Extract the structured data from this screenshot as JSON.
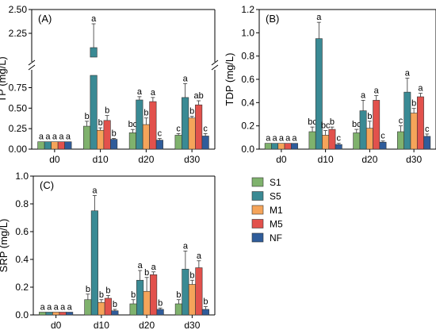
{
  "colors": {
    "S1": "#7fb26d",
    "S5": "#3a8a94",
    "M1": "#f5a45a",
    "M5": "#e2514c",
    "NF": "#2f5c9a"
  },
  "legend": [
    "S1",
    "S5",
    "M1",
    "M5",
    "NF"
  ],
  "chart_data": [
    {
      "id": "A",
      "type": "bar",
      "panel_label": "(A)",
      "ylabel": "TP (mg/L)",
      "categories": [
        "d0",
        "d10",
        "d20",
        "d30"
      ],
      "y_break": [
        0.9,
        2.0
      ],
      "ylim": [
        0,
        2.5
      ],
      "yticks_lower": [
        "0.00",
        "0.25",
        "0.50",
        "0.75"
      ],
      "yticks_upper": [
        "2.25",
        "2.50"
      ],
      "series": [
        {
          "name": "S1",
          "values": [
            0.09,
            0.28,
            0.2,
            0.17
          ],
          "errors": [
            0.0,
            0.06,
            0.04,
            0.02
          ],
          "letters": [
            "a",
            "b",
            "bc",
            "c"
          ]
        },
        {
          "name": "S5",
          "values": [
            0.09,
            2.1,
            0.6,
            0.63
          ],
          "errors": [
            0.0,
            0.25,
            0.04,
            0.17
          ],
          "letters": [
            "a",
            "a",
            "a",
            "a"
          ]
        },
        {
          "name": "M1",
          "values": [
            0.09,
            0.23,
            0.3,
            0.38
          ],
          "errors": [
            0.0,
            0.03,
            0.08,
            0.02
          ],
          "letters": [
            "a",
            "b",
            "b",
            "b"
          ]
        },
        {
          "name": "M5",
          "values": [
            0.09,
            0.35,
            0.58,
            0.54
          ],
          "errors": [
            0.0,
            0.06,
            0.05,
            0.05
          ],
          "letters": [
            "a",
            "b",
            "a",
            "ab"
          ]
        },
        {
          "name": "NF",
          "values": [
            0.09,
            0.12,
            0.11,
            0.16
          ],
          "errors": [
            0.0,
            0.01,
            0.02,
            0.03
          ],
          "letters": [
            "a",
            "b",
            "c",
            "c"
          ]
        }
      ]
    },
    {
      "id": "B",
      "type": "bar",
      "panel_label": "(B)",
      "ylabel": "TDP (mg/L)",
      "categories": [
        "d0",
        "d10",
        "d20",
        "d30"
      ],
      "ylim": [
        0,
        1.2
      ],
      "yticks": [
        "0.0",
        "0.2",
        "0.4",
        "0.6",
        "0.8",
        "1.0",
        "1.2"
      ],
      "series": [
        {
          "name": "S1",
          "values": [
            0.05,
            0.15,
            0.14,
            0.15
          ],
          "errors": [
            0.0,
            0.04,
            0.03,
            0.05
          ],
          "letters": [
            "a",
            "bc",
            "bc",
            "c"
          ]
        },
        {
          "name": "S5",
          "values": [
            0.05,
            0.95,
            0.33,
            0.49
          ],
          "errors": [
            0.0,
            0.14,
            0.09,
            0.12
          ],
          "letters": [
            "a",
            "a",
            "a",
            "a"
          ]
        },
        {
          "name": "M1",
          "values": [
            0.05,
            0.12,
            0.18,
            0.31
          ],
          "errors": [
            0.0,
            0.04,
            0.06,
            0.04
          ],
          "letters": [
            "a",
            "bc",
            "b",
            "b"
          ]
        },
        {
          "name": "M5",
          "values": [
            0.05,
            0.17,
            0.42,
            0.45
          ],
          "errors": [
            0.0,
            0.02,
            0.04,
            0.03
          ],
          "letters": [
            "a",
            "b",
            "a",
            "a"
          ]
        },
        {
          "name": "NF",
          "values": [
            0.05,
            0.04,
            0.06,
            0.11
          ],
          "errors": [
            0.0,
            0.01,
            0.01,
            0.02
          ],
          "letters": [
            "a",
            "c",
            "c",
            "c"
          ]
        }
      ]
    },
    {
      "id": "C",
      "type": "bar",
      "panel_label": "(C)",
      "ylabel": "SRP (mg/L)",
      "categories": [
        "d0",
        "d10",
        "d20",
        "d30"
      ],
      "ylim": [
        0,
        1.0
      ],
      "yticks": [
        "0.0",
        "0.2",
        "0.4",
        "0.6",
        "0.8",
        "1.0"
      ],
      "series": [
        {
          "name": "S1",
          "values": [
            0.02,
            0.11,
            0.08,
            0.08
          ],
          "errors": [
            0.0,
            0.04,
            0.03,
            0.03
          ],
          "letters": [
            "a",
            "b",
            "b",
            "b"
          ]
        },
        {
          "name": "S5",
          "values": [
            0.02,
            0.75,
            0.25,
            0.33
          ],
          "errors": [
            0.0,
            0.11,
            0.07,
            0.13
          ],
          "letters": [
            "a",
            "a",
            "a",
            "a"
          ]
        },
        {
          "name": "M1",
          "values": [
            0.02,
            0.09,
            0.17,
            0.22
          ],
          "errors": [
            0.0,
            0.02,
            0.1,
            0.03
          ],
          "letters": [
            "a",
            "b",
            "b",
            "b"
          ]
        },
        {
          "name": "M5",
          "values": [
            0.02,
            0.12,
            0.29,
            0.34
          ],
          "errors": [
            0.0,
            0.02,
            0.02,
            0.05
          ],
          "letters": [
            "a",
            "b",
            "a",
            "a"
          ]
        },
        {
          "name": "NF",
          "values": [
            0.02,
            0.03,
            0.04,
            0.04
          ],
          "errors": [
            0.0,
            0.01,
            0.01,
            0.02
          ],
          "letters": [
            "a",
            "b",
            "b",
            "b"
          ]
        }
      ]
    }
  ]
}
